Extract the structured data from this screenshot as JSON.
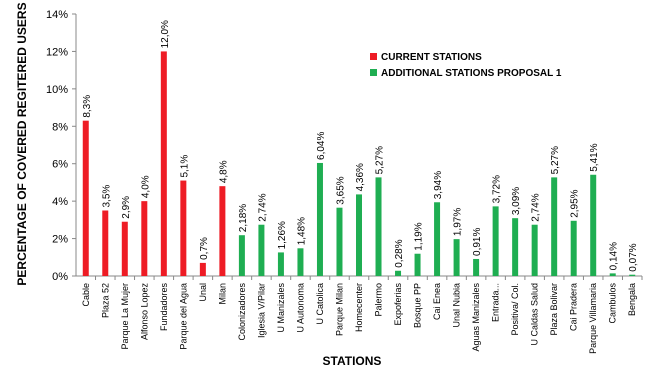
{
  "chart_data": {
    "type": "bar",
    "xlabel": "STATIONS",
    "ylabel": "PERCENTAGE OF COVERED REGITERED USERS",
    "ylim": [
      0,
      14
    ],
    "y_ticks": [
      "0%",
      "2%",
      "4%",
      "6%",
      "8%",
      "10%",
      "12%",
      "14%"
    ],
    "grid": false,
    "legend_position": "top-right",
    "series": [
      {
        "name": "CURRENT STATIONS",
        "color": "#ee1c25"
      },
      {
        "name": "ADDITIONAL STATIONS PROPOSAL 1",
        "color": "#1fae52"
      }
    ],
    "bars": [
      {
        "category": "Cable",
        "value": 8.3,
        "label": "8,3%",
        "series": 0
      },
      {
        "category": "Plaza 52",
        "value": 3.5,
        "label": "3,5%",
        "series": 0
      },
      {
        "category": "Parque La Mujer",
        "value": 2.9,
        "label": "2,9%",
        "series": 0
      },
      {
        "category": "Alfonso Lopez",
        "value": 4.0,
        "label": "4,0%",
        "series": 0
      },
      {
        "category": "Fundadores",
        "value": 12.0,
        "label": "12,0%",
        "series": 0
      },
      {
        "category": "Parque del Agua",
        "value": 5.1,
        "label": "5,1%",
        "series": 0
      },
      {
        "category": "Unal",
        "value": 0.7,
        "label": "0,7%",
        "series": 0
      },
      {
        "category": "Milan",
        "value": 4.8,
        "label": "4,8%",
        "series": 0
      },
      {
        "category": "Colonizadores",
        "value": 2.18,
        "label": "2,18%",
        "series": 1
      },
      {
        "category": "Iglesia V/Pilar",
        "value": 2.74,
        "label": "2,74%",
        "series": 1
      },
      {
        "category": "U Manizales",
        "value": 1.26,
        "label": "1,26%",
        "series": 1
      },
      {
        "category": "U Autonoma",
        "value": 1.48,
        "label": "1,48%",
        "series": 1
      },
      {
        "category": "U Catolica",
        "value": 6.04,
        "label": "6,04%",
        "series": 1
      },
      {
        "category": "Parque Milan",
        "value": 3.65,
        "label": "3,65%",
        "series": 1
      },
      {
        "category": "Homecenter",
        "value": 4.36,
        "label": "4,36%",
        "series": 1
      },
      {
        "category": "Palermo",
        "value": 5.27,
        "label": "5,27%",
        "series": 1
      },
      {
        "category": "Expoferias",
        "value": 0.28,
        "label": "0,28%",
        "series": 1
      },
      {
        "category": "Bosque PP",
        "value": 1.19,
        "label": "1,19%",
        "series": 1
      },
      {
        "category": "Cai Enea",
        "value": 3.94,
        "label": "3,94%",
        "series": 1
      },
      {
        "category": "Unal Nubia",
        "value": 1.97,
        "label": "1,97%",
        "series": 1
      },
      {
        "category": "Aguas Manizales",
        "value": 0.91,
        "label": "0,91%",
        "series": 1
      },
      {
        "category": "Entrada...",
        "value": 3.72,
        "label": "3,72%",
        "series": 1
      },
      {
        "category": "Positiva/ Col.",
        "value": 3.09,
        "label": "3,09%",
        "series": 1
      },
      {
        "category": "U Caldas Salud",
        "value": 2.74,
        "label": "2,74%",
        "series": 1
      },
      {
        "category": "Plaza Bolivar",
        "value": 5.27,
        "label": "5,27%",
        "series": 1
      },
      {
        "category": "Cai Pradera",
        "value": 2.95,
        "label": "2,95%",
        "series": 1
      },
      {
        "category": "Parque Villamaria",
        "value": 5.41,
        "label": "5,41%",
        "series": 1
      },
      {
        "category": "Cambulos",
        "value": 0.14,
        "label": "0,14%",
        "series": 1
      },
      {
        "category": "Bengala",
        "value": 0.07,
        "label": "0,07%",
        "series": 1
      }
    ]
  }
}
